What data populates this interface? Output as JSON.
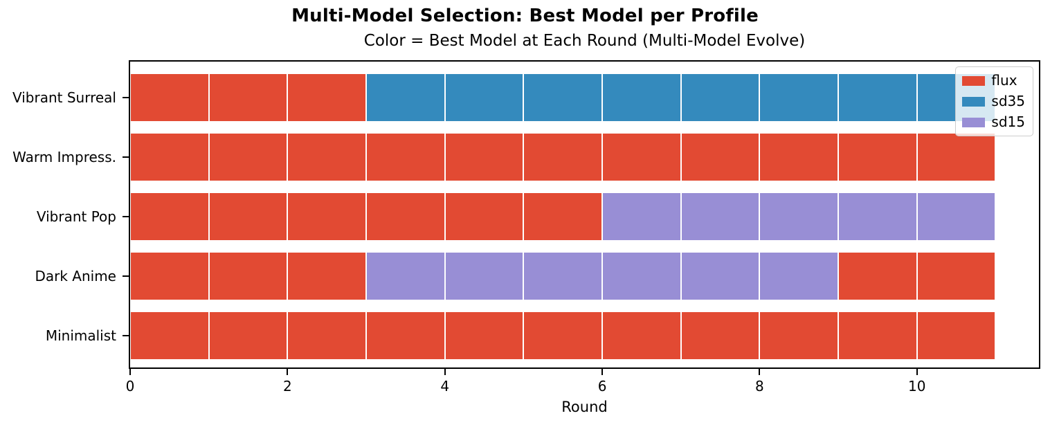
{
  "chart_data": {
    "type": "bar",
    "orientation": "horizontal",
    "stacked": true,
    "title": "Multi-Model Selection: Best Model per Profile",
    "subtitle": "Color = Best Model at Each Round (Multi-Model Evolve)",
    "xlabel": "Round",
    "ylabel": "",
    "xlim": [
      0,
      11.55
    ],
    "xticks": [
      0,
      2,
      4,
      6,
      8,
      10
    ],
    "n_rounds": 11,
    "grid": false,
    "segment_edge_color": "#ffffff",
    "categories": [
      "Vibrant Surreal",
      "Warm Impress.",
      "Vibrant Pop",
      "Dark Anime",
      "Minimalist"
    ],
    "models": [
      {
        "name": "flux",
        "color": "#E24A33"
      },
      {
        "name": "sd35",
        "color": "#348ABD"
      },
      {
        "name": "sd15",
        "color": "#988ED5"
      }
    ],
    "colors": {
      "flux": "#E24A33",
      "sd35": "#348ABD",
      "sd15": "#988ED5"
    },
    "profiles": [
      {
        "label": "Vibrant Surreal",
        "best_model_by_round": [
          "flux",
          "flux",
          "flux",
          "sd35",
          "sd35",
          "sd35",
          "sd35",
          "sd35",
          "sd35",
          "sd35",
          "sd35"
        ]
      },
      {
        "label": "Warm Impress.",
        "best_model_by_round": [
          "flux",
          "flux",
          "flux",
          "flux",
          "flux",
          "flux",
          "flux",
          "flux",
          "flux",
          "flux",
          "flux"
        ]
      },
      {
        "label": "Vibrant Pop",
        "best_model_by_round": [
          "flux",
          "flux",
          "flux",
          "flux",
          "flux",
          "flux",
          "sd15",
          "sd15",
          "sd15",
          "sd15",
          "sd15"
        ]
      },
      {
        "label": "Dark Anime",
        "best_model_by_round": [
          "flux",
          "flux",
          "flux",
          "sd15",
          "sd15",
          "sd15",
          "sd15",
          "sd15",
          "sd15",
          "flux",
          "flux"
        ]
      },
      {
        "label": "Minimalist",
        "best_model_by_round": [
          "flux",
          "flux",
          "flux",
          "flux",
          "flux",
          "flux",
          "flux",
          "flux",
          "flux",
          "flux",
          "flux"
        ]
      }
    ],
    "legend": {
      "position": "upper right",
      "entries": [
        "flux",
        "sd35",
        "sd15"
      ]
    }
  }
}
